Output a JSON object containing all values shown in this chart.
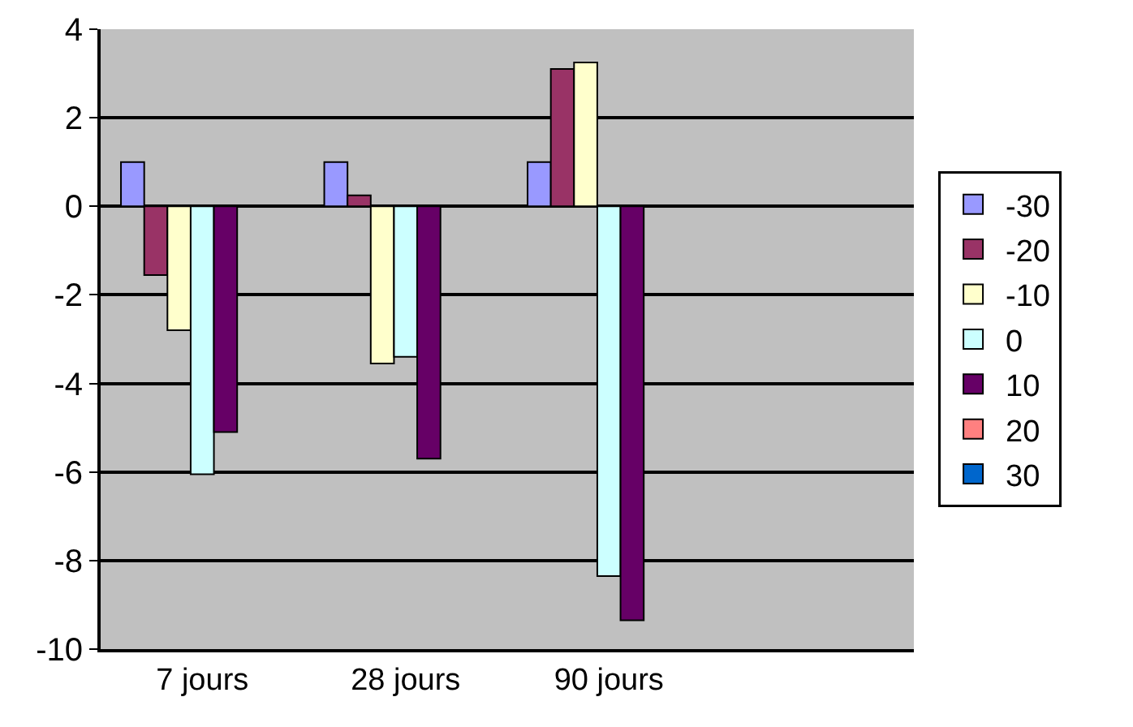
{
  "chart_data": {
    "type": "bar",
    "categories": [
      "7 jours",
      "28 jours",
      "90 jours",
      null
    ],
    "series": [
      {
        "name": "-30",
        "color": "#9999ff",
        "values": [
          1.0,
          1.0,
          1.0,
          null
        ]
      },
      {
        "name": "-20",
        "color": "#993366",
        "values": [
          -1.55,
          0.25,
          3.1,
          null
        ]
      },
      {
        "name": "-10",
        "color": "#ffffcc",
        "values": [
          -2.8,
          -3.55,
          3.25,
          null
        ]
      },
      {
        "name": "0",
        "color": "#ccffff",
        "values": [
          -6.05,
          -3.4,
          -8.35,
          null
        ]
      },
      {
        "name": "10",
        "color": "#660066",
        "values": [
          -5.1,
          -5.7,
          -9.35,
          null
        ]
      },
      {
        "name": "20",
        "color": "#ff8080",
        "values": [
          null,
          null,
          null,
          null
        ]
      },
      {
        "name": "30",
        "color": "#0066cc",
        "values": [
          null,
          null,
          null,
          null
        ]
      }
    ],
    "ylim": [
      -10,
      4
    ],
    "yticks": [
      -10,
      -8,
      -6,
      -4,
      -2,
      0,
      2,
      4
    ],
    "grid": "y",
    "legend": "right"
  }
}
